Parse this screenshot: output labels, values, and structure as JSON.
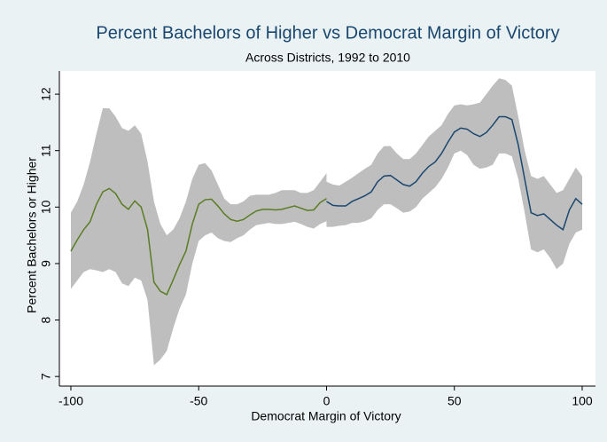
{
  "chart_data": {
    "type": "line",
    "title": "Percent Bachelors of Higher vs Democrat Margin of Victory",
    "subtitle": "Across Districts, 1992 to 2010",
    "x_label": "Democrat Margin of Victory",
    "y_label": "Percent Bachelors or Higher",
    "xlim": [
      -104.5,
      105.2
    ],
    "ylim": [
      6.83,
      12.41
    ],
    "xticks": [
      -100,
      -50,
      0,
      50,
      100
    ],
    "yticks": [
      7,
      8,
      9,
      10,
      11,
      12
    ],
    "band_color": "#bebebe",
    "series": [
      {
        "color": "#5a7d24",
        "x": [
          -100,
          -97.5,
          -95,
          -92.5,
          -90,
          -87.5,
          -85,
          -82.5,
          -80,
          -77.5,
          -75,
          -72.5,
          -70,
          -67.5,
          -65,
          -62.5,
          -60,
          -57.5,
          -55,
          -52.5,
          -50,
          -47.5,
          -45,
          -42.5,
          -40,
          -37.5,
          -35,
          -32.5,
          -30,
          -27.5,
          -25,
          -22.5,
          -20,
          -17.5,
          -15,
          -12.5,
          -10,
          -7.5,
          -5,
          -2.5,
          0
        ],
        "values": [
          9.22,
          9.42,
          9.6,
          9.74,
          10.05,
          10.27,
          10.33,
          10.24,
          10.05,
          9.96,
          10.11,
          10.0,
          9.6,
          8.67,
          8.51,
          8.45,
          8.71,
          8.98,
          9.22,
          9.7,
          10.05,
          10.13,
          10.14,
          10.02,
          9.88,
          9.78,
          9.75,
          9.78,
          9.86,
          9.93,
          9.96,
          9.96,
          9.95,
          9.96,
          9.99,
          10.02,
          9.98,
          9.94,
          9.95,
          10.08,
          10.15
        ],
        "upper": [
          9.9,
          10.1,
          10.4,
          10.8,
          11.3,
          11.75,
          11.75,
          11.6,
          11.4,
          11.35,
          11.45,
          11.3,
          10.8,
          10.1,
          9.7,
          9.5,
          9.6,
          9.8,
          10.1,
          10.5,
          10.75,
          10.78,
          10.65,
          10.4,
          10.15,
          10.05,
          10.05,
          10.1,
          10.2,
          10.22,
          10.22,
          10.22,
          10.25,
          10.3,
          10.3,
          10.3,
          10.25,
          10.25,
          10.3,
          10.45,
          10.6
        ],
        "lower": [
          8.55,
          8.7,
          8.85,
          8.9,
          8.88,
          8.85,
          8.9,
          8.85,
          8.65,
          8.6,
          8.75,
          8.7,
          8.35,
          7.2,
          7.3,
          7.45,
          7.85,
          8.2,
          8.45,
          9.0,
          9.4,
          9.5,
          9.55,
          9.45,
          9.4,
          9.38,
          9.45,
          9.5,
          9.6,
          9.68,
          9.7,
          9.72,
          9.7,
          9.7,
          9.72,
          9.74,
          9.7,
          9.65,
          9.62,
          9.7,
          9.75
        ]
      },
      {
        "color": "#1a476f",
        "x": [
          0,
          2.5,
          5,
          7.5,
          10,
          12.5,
          15,
          17.5,
          20,
          22.5,
          25,
          27.5,
          30,
          32.5,
          35,
          37.5,
          40,
          42.5,
          45,
          47.5,
          50,
          52.5,
          55,
          57.5,
          60,
          62.5,
          65,
          67.5,
          70,
          72.5,
          75,
          77.5,
          80,
          82.5,
          85,
          87.5,
          90,
          92.5,
          95,
          97.5,
          100
        ],
        "values": [
          10.1,
          10.03,
          10.02,
          10.02,
          10.1,
          10.15,
          10.2,
          10.27,
          10.45,
          10.55,
          10.56,
          10.48,
          10.4,
          10.37,
          10.45,
          10.6,
          10.72,
          10.8,
          10.95,
          11.15,
          11.33,
          11.4,
          11.38,
          11.3,
          11.25,
          11.32,
          11.45,
          11.6,
          11.6,
          11.55,
          11.1,
          10.5,
          9.9,
          9.85,
          9.88,
          9.78,
          9.68,
          9.6,
          9.95,
          10.15,
          10.05
        ],
        "upper": [
          10.45,
          10.4,
          10.38,
          10.45,
          10.52,
          10.6,
          10.68,
          10.75,
          10.95,
          11.08,
          11.08,
          10.95,
          10.85,
          10.85,
          10.95,
          11.1,
          11.25,
          11.35,
          11.45,
          11.65,
          11.8,
          11.82,
          11.8,
          11.82,
          11.85,
          12.0,
          12.15,
          12.28,
          12.25,
          12.15,
          11.6,
          11.0,
          10.55,
          10.5,
          10.55,
          10.4,
          10.25,
          10.3,
          10.5,
          10.7,
          10.55
        ],
        "lower": [
          9.65,
          9.65,
          9.67,
          9.68,
          9.72,
          9.72,
          9.75,
          9.8,
          9.95,
          10.05,
          10.05,
          9.98,
          9.9,
          9.92,
          10.0,
          10.15,
          10.25,
          10.35,
          10.5,
          10.7,
          10.95,
          11.0,
          10.92,
          10.75,
          10.68,
          10.7,
          10.75,
          10.95,
          10.95,
          10.9,
          10.5,
          9.9,
          9.25,
          9.2,
          9.25,
          9.1,
          8.9,
          9.0,
          9.35,
          9.55,
          9.6
        ]
      }
    ]
  }
}
